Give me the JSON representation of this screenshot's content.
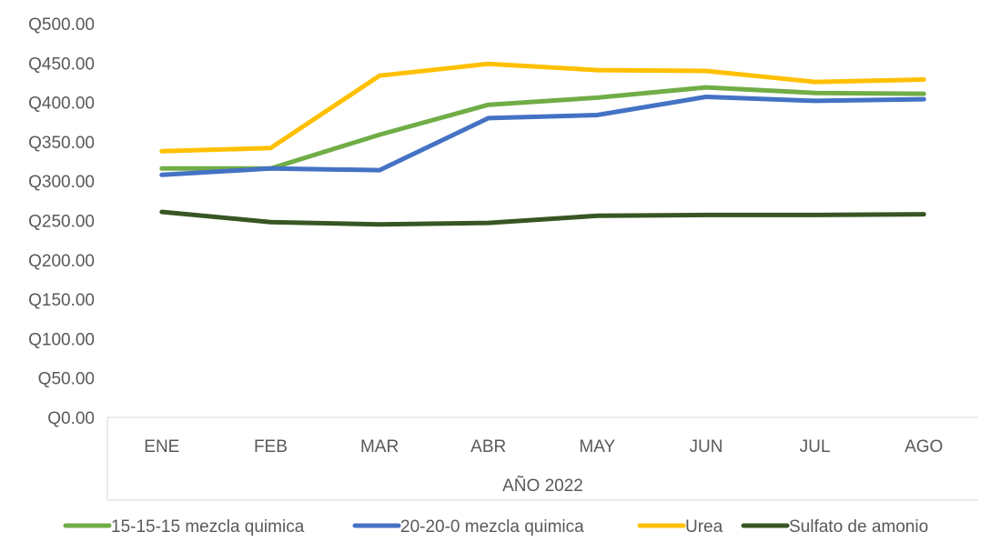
{
  "chart_data": {
    "type": "line",
    "title": "",
    "xlabel": "AÑO 2022",
    "ylabel": "",
    "categories": [
      "ENE",
      "FEB",
      "MAR",
      "ABR",
      "MAY",
      "JUN",
      "JUL",
      "AGO"
    ],
    "ylim": [
      0,
      500
    ],
    "yticks": [
      0,
      50,
      100,
      150,
      200,
      250,
      300,
      350,
      400,
      450,
      500
    ],
    "ytick_labels": [
      "Q0.00",
      "Q50.00",
      "Q100.00",
      "Q150.00",
      "Q200.00",
      "Q250.00",
      "Q300.00",
      "Q350.00",
      "Q400.00",
      "Q450.00",
      "Q500.00"
    ],
    "grid": false,
    "legend_position": "bottom",
    "series": [
      {
        "name": "15-15-15 mezcla quimica",
        "color": "#70ad47",
        "values": [
          316,
          316,
          359,
          397,
          406,
          419,
          412,
          411
        ]
      },
      {
        "name": "20-20-0 mezcla quimica",
        "color": "#4472c4",
        "values": [
          308,
          316,
          314,
          380,
          384,
          407,
          402,
          404
        ]
      },
      {
        "name": "Urea",
        "color": "#ffc000",
        "values": [
          338,
          342,
          434,
          449,
          441,
          440,
          426,
          429
        ]
      },
      {
        "name": "Sulfato de amonio",
        "color": "#375623",
        "values": [
          261,
          248,
          245,
          247,
          256,
          257,
          257,
          258
        ]
      }
    ]
  }
}
